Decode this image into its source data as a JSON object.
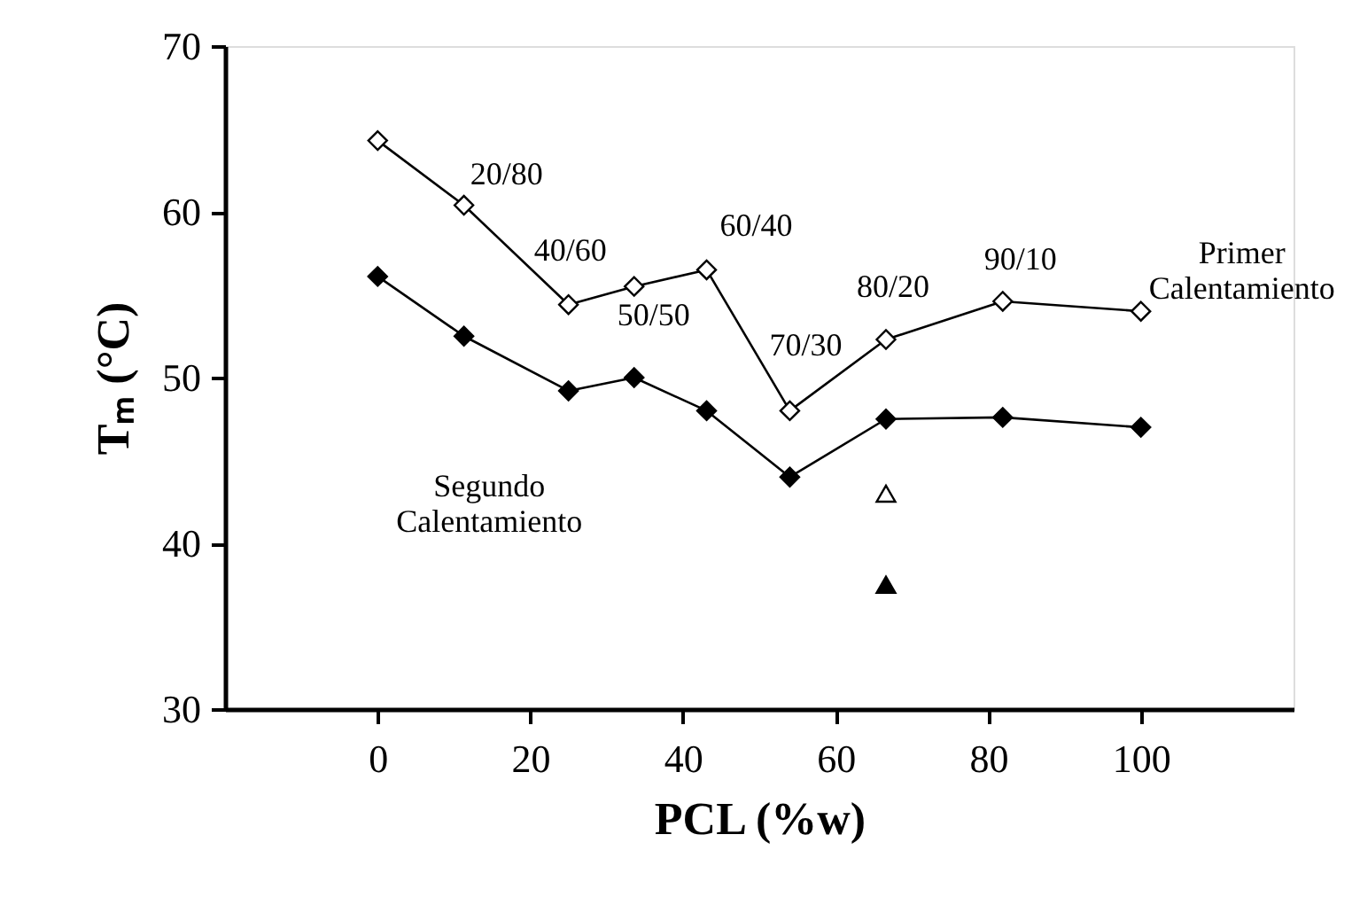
{
  "chart_data": {
    "type": "line",
    "xlabel": "PCL (%w)",
    "ylabel": "Tₘ (°C)",
    "xlim": [
      -20,
      120
    ],
    "xticks": [
      0,
      20,
      40,
      60,
      80,
      100
    ],
    "ylim": [
      30,
      70
    ],
    "yticks": [
      30,
      40,
      50,
      60,
      70
    ],
    "grid": false,
    "marker": "diamond",
    "line_style": "solid",
    "series": [
      {
        "name": "Primer Calentamiento",
        "color": "#ffffff",
        "x": [
          0,
          11.3,
          25,
          33.6,
          43.1,
          54,
          66.6,
          81.9,
          100
        ],
        "values": [
          64.3,
          60.4,
          54.4,
          55.5,
          56.5,
          48.0,
          52.3,
          54.6,
          54.0
        ]
      },
      {
        "name": "Segundo Calentamiento",
        "color": "#000000",
        "x": [
          0,
          11.3,
          25,
          33.6,
          43.1,
          54,
          66.6,
          81.9,
          100
        ],
        "values": [
          56.1,
          52.5,
          49.2,
          50.0,
          48.0,
          44.0,
          47.5,
          47.6,
          47.0
        ]
      },
      {
        "type": "scatter",
        "marker": "triangle",
        "color": "#ffffff",
        "x": [
          66.6
        ],
        "values": [
          43.0
        ]
      },
      {
        "type": "scatter",
        "marker": "triangle",
        "color": "#000000",
        "x": [
          66.6
        ],
        "values": [
          37.5
        ]
      }
    ],
    "annotations": [
      {
        "text": "20/80",
        "x": 11.3,
        "y": 60.4
      },
      {
        "text": "40/60",
        "x": 25,
        "y": 54.4
      },
      {
        "text": "50/50",
        "x": 33.6,
        "y": 55.5
      },
      {
        "text": "60/40",
        "x": 43.1,
        "y": 56.5
      },
      {
        "text": "70/30",
        "x": 54,
        "y": 48.0
      },
      {
        "text": "80/20",
        "x": 66.6,
        "y": 52.3
      },
      {
        "text": "90/10",
        "x": 81.9,
        "y": 54.6
      }
    ]
  }
}
